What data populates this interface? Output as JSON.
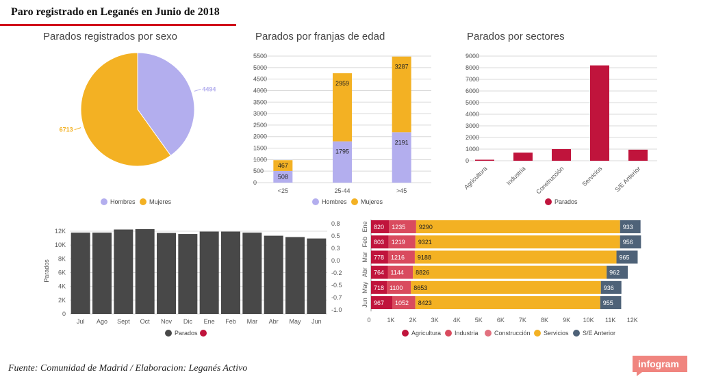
{
  "header": {
    "title": "Paro registrado en Leganés en Junio de 2018"
  },
  "footer": {
    "source": "Fuente: Comunidad de Madrid / Elaboracion: Leganés Activo"
  },
  "logo": {
    "text": "infogram"
  },
  "colors": {
    "hombres": "#b3aeee",
    "mujeres": "#f3b123",
    "sector": "#c0143c",
    "parados_dark": "#484848",
    "agricultura": "#c0143c",
    "industria": "#d94b5e",
    "construccion": "#e2717f",
    "servicios": "#f3b123",
    "se_anterior": "#4e6278",
    "accent": "#d0021b"
  },
  "chart_data": [
    {
      "id": "sexo",
      "type": "pie",
      "title": "Parados registrados por sexo",
      "slices": [
        {
          "name": "Hombres",
          "value": 4494
        },
        {
          "name": "Mujeres",
          "value": 6713
        }
      ],
      "value_labels": [
        "4494",
        "6713"
      ],
      "legend": [
        "Hombres",
        "Mujeres"
      ],
      "legend_position": "bottom"
    },
    {
      "id": "edad",
      "type": "bar",
      "stacked": true,
      "title": "Parados por franjas de edad",
      "categories": [
        "<25",
        "25-44",
        ">45"
      ],
      "series": [
        {
          "name": "Hombres",
          "values": [
            508,
            1795,
            2191
          ]
        },
        {
          "name": "Mujeres",
          "values": [
            467,
            2959,
            3287
          ]
        }
      ],
      "ylim": [
        0,
        5500
      ],
      "yticks": [
        "0",
        "500",
        "1000",
        "1500",
        "2000",
        "2500",
        "3000",
        "3500",
        "4000",
        "4500",
        "5000",
        "5500"
      ],
      "legend": [
        "Hombres",
        "Mujeres"
      ],
      "legend_position": "bottom",
      "grid": true
    },
    {
      "id": "sectores",
      "type": "bar",
      "title": "Parados por sectores",
      "categories": [
        "Agricultura",
        "Industria",
        "Construcción",
        "Servicios",
        "S/E Anterior"
      ],
      "series": [
        {
          "name": "Parados",
          "values": [
            90,
            700,
            1000,
            8200,
            950
          ]
        }
      ],
      "ylim": [
        0,
        9000
      ],
      "yticks": [
        "0",
        "1000",
        "2000",
        "3000",
        "4000",
        "5000",
        "6000",
        "7000",
        "8000",
        "9000"
      ],
      "legend": [
        "Parados"
      ],
      "legend_position": "bottom",
      "grid": true
    },
    {
      "id": "mensual",
      "type": "bar",
      "title": "",
      "categories": [
        "Jul",
        "Ago",
        "Sept",
        "Oct",
        "Nov",
        "Dic",
        "Ene",
        "Feb",
        "Mar",
        "Abr",
        "May",
        "Jun"
      ],
      "series": [
        {
          "name": "Parados",
          "values": [
            11800,
            11800,
            12250,
            12300,
            11750,
            11600,
            11950,
            11950,
            11800,
            11350,
            11150,
            10950
          ]
        }
      ],
      "ylabel": "Parados",
      "ylim": [
        0,
        12500
      ],
      "yticks": [
        "0",
        "2K",
        "4K",
        "6K",
        "8K",
        "10K",
        "12K"
      ],
      "y2ticks": [
        "-1.0",
        "-0.7",
        "-0.5",
        "-0.2",
        "0.0",
        "0.3",
        "0.5",
        "0.8"
      ],
      "legend": [
        "Parados",
        ""
      ],
      "legend_position": "bottom",
      "grid": true
    },
    {
      "id": "mes_sector",
      "type": "bar",
      "orientation": "horizontal",
      "stacked": true,
      "title": "",
      "categories": [
        "Ene",
        "Feb",
        "Mar",
        "Abr",
        "May",
        "Jun"
      ],
      "series": [
        {
          "name": "Agricultura",
          "values": [
            820,
            803,
            778,
            764,
            718,
            967
          ]
        },
        {
          "name": "Industria",
          "values": [
            1235,
            1219,
            1216,
            1144,
            1100,
            1052
          ]
        },
        {
          "name": "Construcción",
          "values": [
            0,
            0,
            0,
            0,
            0,
            0
          ]
        },
        {
          "name": "Servicios",
          "values": [
            9290,
            9321,
            9188,
            8826,
            8653,
            8423
          ]
        },
        {
          "name": "S/E Anterior",
          "values": [
            933,
            956,
            965,
            962,
            936,
            955
          ]
        }
      ],
      "xlim": [
        0,
        12600
      ],
      "xticks": [
        "0",
        "1K",
        "2K",
        "3K",
        "4K",
        "5K",
        "6K",
        "7K",
        "8K",
        "9K",
        "10K",
        "11K",
        "12K"
      ],
      "legend": [
        "Agricultura",
        "Industria",
        "Construcción",
        "Servicios",
        "S/E Anterior"
      ],
      "legend_position": "bottom"
    }
  ]
}
